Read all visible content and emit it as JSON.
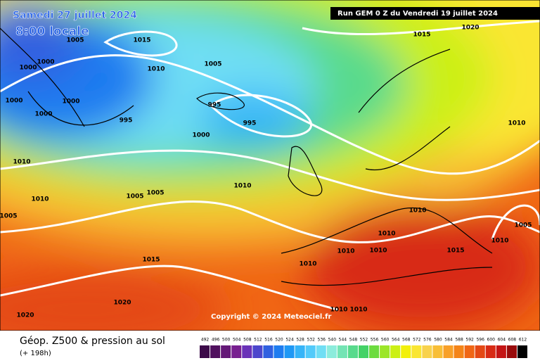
{
  "header": {
    "date": "Samedi 27 juillet 2024",
    "time": "8:00 locale",
    "run": "Run GEM 0 Z du Vendredi 19 juillet 2024"
  },
  "isobars": [
    1005,
    1015,
    1000,
    1000,
    1010,
    1005,
    1000,
    1000,
    1000,
    995,
    995,
    995,
    1000,
    1010,
    1010,
    1005,
    1005,
    1005,
    1010,
    1015,
    1020,
    1010,
    1010,
    1005,
    1010,
    1010,
    1010,
    1010,
    1015,
    1010,
    1015,
    1020,
    1020,
    1010,
    1010
  ],
  "copyright": "Copyright © 2024 Meteociel.fr",
  "footer": {
    "title": "Géop. Z500 & pression au sol",
    "lead": "(+ 198h)"
  },
  "legend": {
    "values": [
      492,
      496,
      500,
      504,
      508,
      512,
      516,
      520,
      524,
      528,
      532,
      536,
      540,
      544,
      548,
      552,
      556,
      560,
      564,
      568,
      572,
      576,
      580,
      584,
      588,
      592,
      596,
      600,
      604,
      608,
      612
    ],
    "colors": [
      "#3c0a49",
      "#50105e",
      "#641877",
      "#782090",
      "#6a32b8",
      "#4c46cc",
      "#3060e0",
      "#1e7cf0",
      "#1e98f5",
      "#36b4f8",
      "#52cafa",
      "#70def4",
      "#8cecdc",
      "#74e4b4",
      "#58da8c",
      "#44d266",
      "#6cdc3e",
      "#9ce628",
      "#ccf014",
      "#f2f00a",
      "#fae632",
      "#f8d24c",
      "#f8be36",
      "#f8a028",
      "#f48418",
      "#f06614",
      "#e44814",
      "#d82a14",
      "#c41414",
      "#980a0a",
      "#000000"
    ]
  }
}
